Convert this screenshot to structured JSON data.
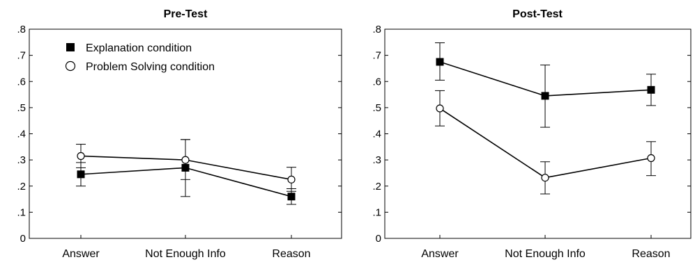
{
  "chart_data": [
    {
      "type": "line",
      "title": "Pre-Test",
      "categories": [
        "Answer",
        "Not Enough Info",
        "Reason"
      ],
      "ylim": [
        0,
        0.8
      ],
      "yticks": [
        "0",
        ".1",
        ".2",
        ".3",
        ".4",
        ".5",
        ".6",
        ".7",
        ".8"
      ],
      "legend": "top-left",
      "grid": false,
      "series": [
        {
          "name": "Explanation condition",
          "marker": "filled-square",
          "values": [
            0.245,
            0.27,
            0.16
          ],
          "err_low": [
            0.2,
            0.16,
            0.13
          ],
          "err_high": [
            0.29,
            0.378,
            0.19
          ]
        },
        {
          "name": "Problem Solving condition",
          "marker": "open-circle",
          "values": [
            0.315,
            0.3,
            0.225
          ],
          "err_low": [
            0.27,
            0.225,
            0.18
          ],
          "err_high": [
            0.36,
            0.378,
            0.272
          ]
        }
      ]
    },
    {
      "type": "line",
      "title": "Post-Test",
      "categories": [
        "Answer",
        "Not Enough Info",
        "Reason"
      ],
      "ylim": [
        0,
        0.8
      ],
      "yticks": [
        "0",
        ".1",
        ".2",
        ".3",
        ".4",
        ".5",
        ".6",
        ".7",
        ".8"
      ],
      "grid": false,
      "series": [
        {
          "name": "Explanation condition",
          "marker": "filled-square",
          "values": [
            0.675,
            0.545,
            0.568
          ],
          "err_low": [
            0.605,
            0.425,
            0.508
          ],
          "err_high": [
            0.748,
            0.663,
            0.628
          ]
        },
        {
          "name": "Problem Solving condition",
          "marker": "open-circle",
          "values": [
            0.497,
            0.232,
            0.307
          ],
          "err_low": [
            0.43,
            0.17,
            0.24
          ],
          "err_high": [
            0.565,
            0.293,
            0.37
          ]
        }
      ]
    }
  ]
}
